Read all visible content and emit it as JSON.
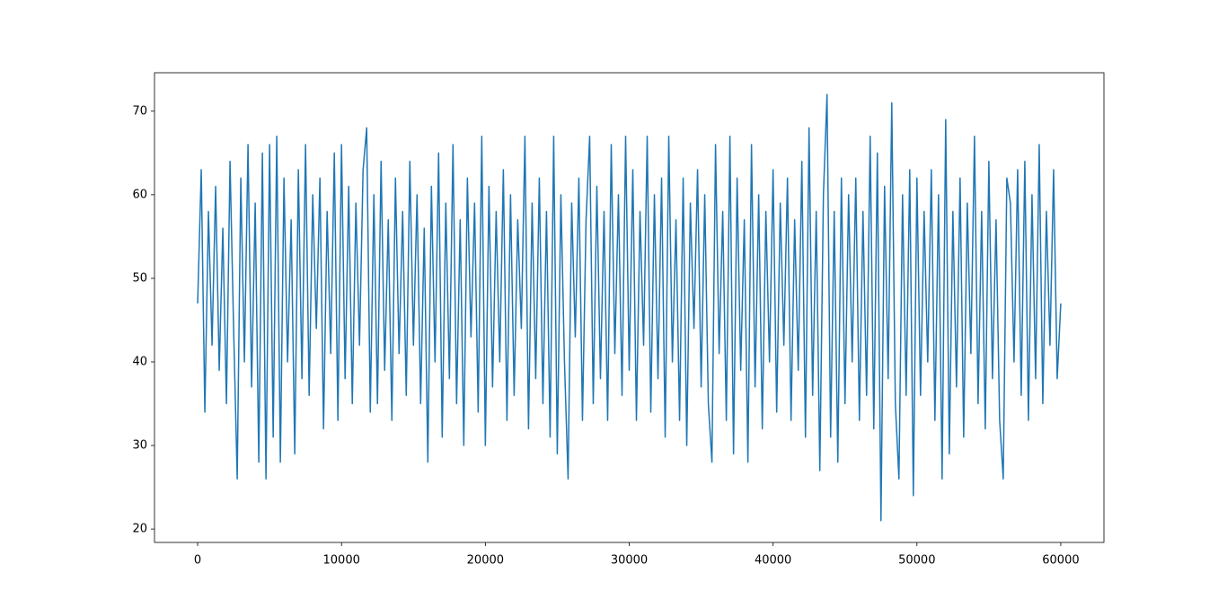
{
  "chart_data": {
    "type": "line",
    "x": [
      0,
      250,
      500,
      750,
      1000,
      1250,
      1500,
      1750,
      2000,
      2250,
      2500,
      2750,
      3000,
      3250,
      3500,
      3750,
      4000,
      4250,
      4500,
      4750,
      5000,
      5250,
      5500,
      5750,
      6000,
      6250,
      6500,
      6750,
      7000,
      7250,
      7500,
      7750,
      8000,
      8250,
      8500,
      8750,
      9000,
      9250,
      9500,
      9750,
      10000,
      10250,
      10500,
      10750,
      11000,
      11250,
      11500,
      11750,
      12000,
      12250,
      12500,
      12750,
      13000,
      13250,
      13500,
      13750,
      14000,
      14250,
      14500,
      14750,
      15000,
      15250,
      15500,
      15750,
      16000,
      16250,
      16500,
      16750,
      17000,
      17250,
      17500,
      17750,
      18000,
      18250,
      18500,
      18750,
      19000,
      19250,
      19500,
      19750,
      20000,
      20250,
      20500,
      20750,
      21000,
      21250,
      21500,
      21750,
      22000,
      22250,
      22500,
      22750,
      23000,
      23250,
      23500,
      23750,
      24000,
      24250,
      24500,
      24750,
      25000,
      25250,
      25500,
      25750,
      26000,
      26250,
      26500,
      26750,
      27000,
      27250,
      27500,
      27750,
      28000,
      28250,
      28500,
      28750,
      29000,
      29250,
      29500,
      29750,
      30000,
      30250,
      30500,
      30750,
      31000,
      31250,
      31500,
      31750,
      32000,
      32250,
      32500,
      32750,
      33000,
      33250,
      33500,
      33750,
      34000,
      34250,
      34500,
      34750,
      35000,
      35250,
      35500,
      35750,
      36000,
      36250,
      36500,
      36750,
      37000,
      37250,
      37500,
      37750,
      38000,
      38250,
      38500,
      38750,
      39000,
      39250,
      39500,
      39750,
      40000,
      40250,
      40500,
      40750,
      41000,
      41250,
      41500,
      41750,
      42000,
      42250,
      42500,
      42750,
      43000,
      43250,
      43500,
      43750,
      44000,
      44250,
      44500,
      44750,
      45000,
      45250,
      45500,
      45750,
      46000,
      46250,
      46500,
      46750,
      47000,
      47250,
      47500,
      47750,
      48000,
      48250,
      48500,
      48750,
      49000,
      49250,
      49500,
      49750,
      50000,
      50250,
      50500,
      50750,
      51000,
      51250,
      51500,
      51750,
      52000,
      52250,
      52500,
      52750,
      53000,
      53250,
      53500,
      53750,
      54000,
      54250,
      54500,
      54750,
      55000,
      55250,
      55500,
      55750,
      56000,
      56250,
      56500,
      56750,
      57000,
      57250,
      57500,
      57750,
      58000,
      58250,
      58500,
      58750,
      59000,
      59250,
      59500,
      59750,
      60000
    ],
    "values": [
      47,
      63,
      34,
      58,
      42,
      61,
      39,
      56,
      35,
      64,
      44,
      26,
      62,
      40,
      66,
      37,
      59,
      28,
      65,
      26,
      66,
      31,
      67,
      28,
      62,
      40,
      57,
      29,
      63,
      38,
      66,
      36,
      60,
      44,
      62,
      32,
      58,
      41,
      65,
      33,
      66,
      38,
      61,
      35,
      59,
      42,
      63,
      68,
      34,
      60,
      35,
      64,
      39,
      57,
      33,
      62,
      41,
      58,
      36,
      64,
      42,
      60,
      35,
      56,
      28,
      61,
      40,
      65,
      31,
      59,
      38,
      66,
      35,
      57,
      30,
      62,
      43,
      59,
      34,
      67,
      30,
      61,
      37,
      58,
      40,
      63,
      33,
      60,
      36,
      57,
      44,
      67,
      32,
      59,
      38,
      62,
      35,
      58,
      31,
      67,
      29,
      60,
      40,
      26,
      59,
      43,
      62,
      33,
      57,
      67,
      35,
      61,
      38,
      58,
      33,
      66,
      41,
      60,
      36,
      67,
      39,
      63,
      33,
      58,
      42,
      67,
      34,
      60,
      38,
      62,
      31,
      67,
      40,
      57,
      33,
      62,
      30,
      59,
      44,
      63,
      37,
      60,
      35,
      28,
      66,
      41,
      58,
      33,
      67,
      29,
      62,
      39,
      57,
      28,
      66,
      37,
      60,
      32,
      58,
      40,
      63,
      34,
      59,
      42,
      62,
      33,
      57,
      39,
      64,
      31,
      68,
      36,
      58,
      27,
      60,
      72,
      31,
      58,
      28,
      62,
      35,
      60,
      40,
      62,
      33,
      58,
      36,
      67,
      32,
      65,
      21,
      61,
      38,
      71,
      35,
      26,
      60,
      36,
      63,
      24,
      62,
      36,
      58,
      40,
      63,
      33,
      60,
      26,
      69,
      29,
      58,
      37,
      62,
      31,
      59,
      41,
      67,
      35,
      58,
      32,
      64,
      38,
      57,
      33,
      26,
      62,
      59,
      40,
      63,
      36,
      64,
      33,
      60,
      38,
      66,
      35,
      58,
      42,
      63,
      38,
      47
    ],
    "color": "#1f77b4",
    "xlim": [
      -3000,
      63000
    ],
    "xticks": [
      0,
      10000,
      20000,
      30000,
      40000,
      50000,
      60000
    ],
    "ylim": [
      18.4,
      74.6
    ],
    "yticks": [
      20,
      30,
      40,
      50,
      60,
      70
    ]
  }
}
